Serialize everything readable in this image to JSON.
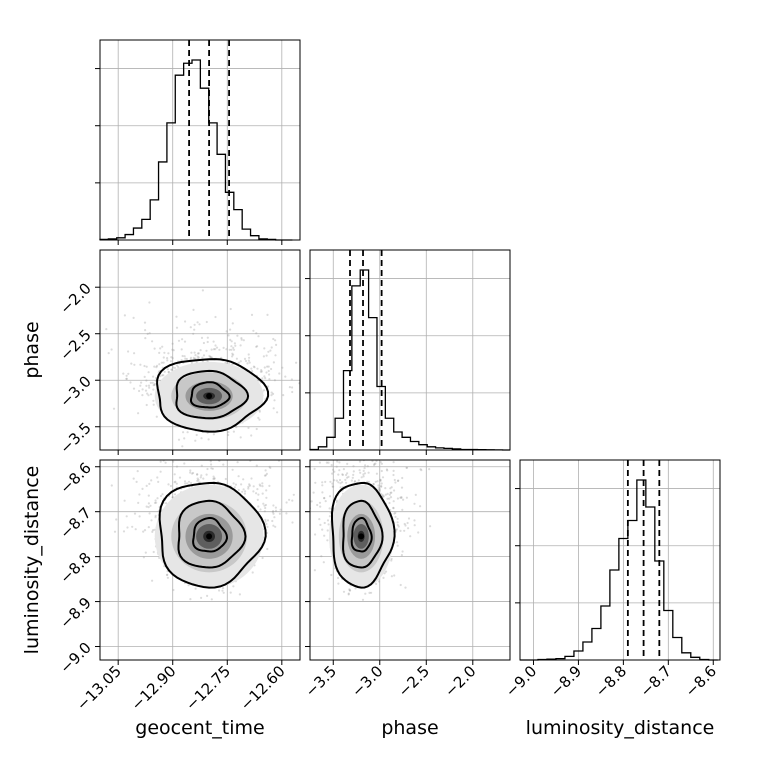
{
  "chart_data": {
    "type": "corner",
    "grid": true,
    "parameters": [
      {
        "name": "geocent_time",
        "range": [
          -13.1,
          -12.55
        ],
        "ticks": [
          -13.05,
          -12.9,
          -12.75,
          -12.6
        ],
        "tick_labels": [
          "−13.05",
          "−12.90",
          "−12.75",
          "−12.60"
        ]
      },
      {
        "name": "phase",
        "range": [
          -3.75,
          -1.6
        ],
        "ticks": [
          -3.5,
          -3.0,
          -2.5,
          -2.0
        ],
        "tick_labels": [
          "−3.5",
          "−3.0",
          "−2.5",
          "−2.0"
        ]
      },
      {
        "name": "luminosity_distance",
        "range": [
          -9.03,
          -8.585
        ],
        "ticks": [
          -9.0,
          -8.9,
          -8.8,
          -8.7,
          -8.6
        ],
        "tick_labels": [
          "−9.0",
          "−8.9",
          "−8.8",
          "−8.7",
          "−8.6"
        ]
      }
    ],
    "axis_labels": {
      "x": [
        "geocent_time",
        "phase",
        "luminosity_distance"
      ],
      "y": [
        "",
        "phase",
        "luminosity_distance"
      ]
    },
    "histograms": [
      {
        "parameter": "geocent_time",
        "bin_edges": [
          -13.1,
          -13.077,
          -13.054,
          -13.031,
          -13.008,
          -12.985,
          -12.962,
          -12.939,
          -12.916,
          -12.893,
          -12.87,
          -12.847,
          -12.824,
          -12.801,
          -12.778,
          -12.755,
          -12.732,
          -12.709,
          -12.686,
          -12.663,
          -12.64,
          -12.617,
          -12.594,
          -12.571
        ],
        "counts": [
          0.5,
          1,
          2,
          5,
          11,
          19,
          37,
          72,
          108,
          152,
          163,
          166,
          140,
          108,
          79,
          44,
          28,
          10,
          4,
          1,
          0.5,
          0,
          0
        ],
        "quantiles": [
          -12.855,
          -12.8,
          -12.745
        ]
      },
      {
        "parameter": "phase",
        "bin_edges": [
          -3.75,
          -3.66,
          -3.57,
          -3.48,
          -3.39,
          -3.3,
          -3.21,
          -3.12,
          -3.03,
          -2.94,
          -2.85,
          -2.76,
          -2.67,
          -2.58,
          -2.49,
          -2.4,
          -2.31,
          -2.22,
          -2.13,
          -2.04,
          -1.95,
          -1.86,
          -1.77,
          -1.68,
          -1.6
        ],
        "counts": [
          0.5,
          3,
          12,
          30,
          75,
          155,
          170,
          125,
          60,
          30,
          17,
          12,
          8,
          5,
          3,
          2,
          1.5,
          1,
          0.5,
          0.5,
          0.3,
          0.2,
          0.1,
          0
        ],
        "quantiles": [
          -3.32,
          -3.18,
          -2.98
        ]
      },
      {
        "parameter": "luminosity_distance",
        "bin_edges": [
          -9.03,
          -9.01,
          -8.99,
          -8.97,
          -8.95,
          -8.93,
          -8.91,
          -8.89,
          -8.87,
          -8.85,
          -8.83,
          -8.81,
          -8.79,
          -8.77,
          -8.75,
          -8.73,
          -8.71,
          -8.69,
          -8.67,
          -8.65,
          -8.63,
          -8.61,
          -8.59
        ],
        "counts": [
          0,
          0,
          0.5,
          1,
          1.5,
          4,
          10,
          20,
          35,
          60,
          100,
          135,
          155,
          200,
          170,
          110,
          55,
          25,
          8,
          3,
          0.5,
          0
        ],
        "quantiles": [
          -8.79,
          -8.755,
          -8.72
        ]
      }
    ],
    "joint_distributions": [
      {
        "x_param": "geocent_time",
        "y_param": "phase",
        "mean": [
          -12.8,
          -3.17
        ],
        "sd": [
          0.065,
          0.16
        ],
        "contour_levels_sigma": [
          0.8,
          1.5,
          2.3
        ],
        "core_points": [
          [
            -12.8,
            -3.17
          ]
        ]
      },
      {
        "x_param": "geocent_time",
        "y_param": "luminosity_distance",
        "mean": [
          -12.8,
          -8.755
        ],
        "sd": [
          0.065,
          0.05
        ],
        "contour_levels_sigma": [
          0.7,
          1.4,
          2.2
        ],
        "core_points": [
          [
            -12.8,
            -8.755
          ]
        ]
      },
      {
        "x_param": "phase",
        "y_param": "luminosity_distance",
        "mean": [
          -3.2,
          -8.755
        ],
        "sd": [
          0.15,
          0.05
        ],
        "contour_levels_sigma": [
          0.7,
          1.4,
          2.2
        ],
        "core_points": [
          [
            -3.2,
            -8.755
          ]
        ]
      }
    ]
  }
}
